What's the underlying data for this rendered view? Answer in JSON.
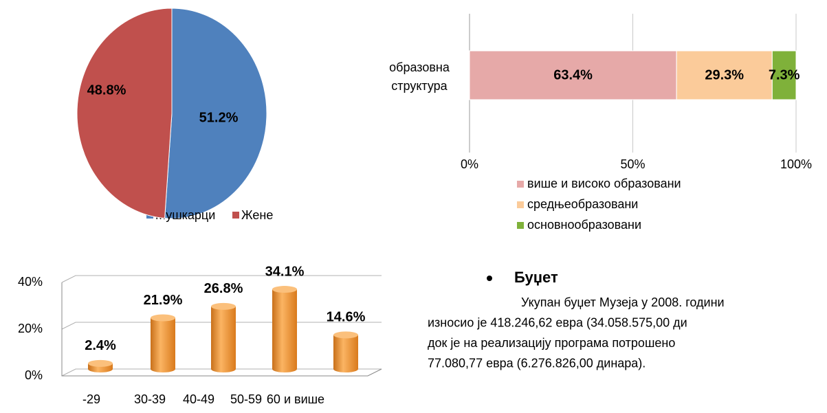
{
  "chart_data": [
    {
      "type": "pie",
      "categories": [
        "Мушкарци",
        "Жене"
      ],
      "values": [
        51.2,
        48.8
      ],
      "value_labels": [
        "51.2%",
        "48.8%"
      ],
      "colors": [
        "#4f81bd",
        "#c0504d"
      ],
      "legend": "bottom"
    },
    {
      "type": "stacked-hbar",
      "categories": [
        "образовна структура"
      ],
      "series": [
        {
          "name": "више и високо образовани",
          "color": "#e6a9a8",
          "values": [
            63.4
          ],
          "value_labels": [
            "63.4%"
          ]
        },
        {
          "name": "средњеобразовани",
          "color": "#fbcb9a",
          "values": [
            29.3
          ],
          "value_labels": [
            "29.3%"
          ]
        },
        {
          "name": "основнообразовани",
          "color": "#7fb13a",
          "values": [
            7.3
          ],
          "value_labels": [
            "7.3%"
          ]
        }
      ],
      "xlim": [
        0,
        100
      ],
      "xticks": [
        {
          "value": 0,
          "label": "0%"
        },
        {
          "value": 50,
          "label": "50%"
        },
        {
          "value": 100,
          "label": "100%"
        }
      ],
      "grid": true,
      "legend": "bottom"
    },
    {
      "type": "cylinder",
      "categories": [
        "-29",
        "30-39",
        "40-49",
        "50-59",
        "60 и више"
      ],
      "values": [
        2.4,
        21.9,
        26.8,
        34.1,
        14.6
      ],
      "value_labels": [
        "2.4%",
        "21.9%",
        "26.8%",
        "34.1%",
        "14.6%"
      ],
      "color": "#f79a34",
      "ylim": [
        0,
        40
      ],
      "yticks": [
        {
          "value": 0,
          "label": "0%"
        },
        {
          "value": 20,
          "label": "20%"
        },
        {
          "value": 40,
          "label": "40%"
        }
      ],
      "grid": true
    }
  ],
  "budget": {
    "heading": "Буџет",
    "lines": [
      "Укупан буџет Музеја у 2008. години",
      "износио је 418.246,62 евра (34.058.575,00 ди",
      "док је на реализацију програма потрошено",
      "77.080,77 евра (6.276.826,00 динара)."
    ]
  }
}
